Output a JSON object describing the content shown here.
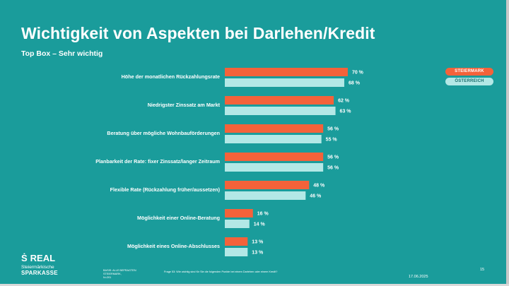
{
  "header": {
    "title": "Wichtigkeit von Aspekten bei Darlehen/Kredit",
    "subtitle": "Top Box – Sehr wichtig"
  },
  "legend": {
    "steiermark": "STEIERMARK",
    "oesterreich": "ÖSTERREICH"
  },
  "colors": {
    "background": "#1a9c9b",
    "steiermark": "#f4623a",
    "oesterreich": "#b3e8e6"
  },
  "chart_data": {
    "type": "bar",
    "orientation": "horizontal",
    "categories": [
      "Höhe der monatlichen Rückzahlungsrate",
      "Niedrigster Zinssatz am Markt",
      "Beratung über mögliche Wohnbauförderungen",
      "Planbarkeit der Rate: fixer Zinssatz/langer Zeitraum",
      "Flexible Rate (Rückzahlung früher/aussetzen)",
      "Möglichkeit einer Online-Beratung",
      "Möglichkeit eines Online-Abschlusses"
    ],
    "series": [
      {
        "name": "STEIERMARK",
        "values": [
          70,
          62,
          56,
          56,
          48,
          16,
          13
        ]
      },
      {
        "name": "ÖSTERREICH",
        "values": [
          68,
          63,
          55,
          56,
          46,
          14,
          13
        ]
      }
    ],
    "value_suffix": " %",
    "xlim": [
      0,
      100
    ],
    "grid": false,
    "legend_position": "top-right"
  },
  "footer": {
    "logo_name": "REAL",
    "logo_line1": "Steiermärkische",
    "logo_line2": "SPARKASSE",
    "basis": "BASIS: ALLE BEFRAGTEN",
    "basis_line2": "STEIERMARK,",
    "basis_line3": "N=201",
    "question": "Frage 53: Wie wichtig sind für Sie die folgenden Punkte bei einem Darlehen oder einem Kredit?",
    "date": "17.06.2025",
    "page": "15"
  }
}
